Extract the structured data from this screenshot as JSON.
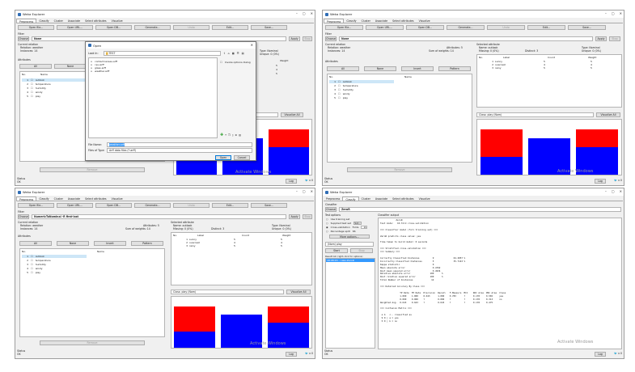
{
  "app_title": "Weka Explorer",
  "tabs": [
    "Preprocess",
    "Classify",
    "Cluster",
    "Associate",
    "Select attributes",
    "Visualize"
  ],
  "toolbar": {
    "open_file": "Open file...",
    "open_url": "Open URL...",
    "open_db": "Open DB...",
    "generate": "Generate...",
    "undo": "Undo",
    "edit": "Edit...",
    "save": "Save..."
  },
  "filter": {
    "label": "Filter",
    "choose": "Choose",
    "value": "None",
    "value_bl": "NumericToNominal -R first-last",
    "apply": "Apply",
    "stop": "Stop"
  },
  "current_relation": {
    "label": "Current relation",
    "relation": "Relation: weather",
    "instances": "Instances: 14",
    "attributes": "Attributes: 5",
    "sum_weights": "Sum of weights: 14"
  },
  "attributes": {
    "label": "Attributes",
    "all": "All",
    "none": "None",
    "invert": "Invert",
    "pattern": "Pattern",
    "col_no": "No.",
    "col_name": "Name",
    "list": [
      {
        "no": "1",
        "name": "outlook"
      },
      {
        "no": "2",
        "name": "temperature"
      },
      {
        "no": "3",
        "name": "humidity"
      },
      {
        "no": "4",
        "name": "windy"
      },
      {
        "no": "5",
        "name": "play"
      }
    ],
    "remove": "Remove"
  },
  "selected_attr": {
    "label": "Selected attribute",
    "name": "Name: outlook",
    "missing": "Missing: 0 (0%)",
    "distinct": "Distinct: 3",
    "type": "Type: Nominal",
    "unique": "Unique: 0 (0%)",
    "cols": [
      "No.",
      "Label",
      "Count",
      "Weight"
    ],
    "rows": [
      [
        "1",
        "sunny",
        "5",
        "5"
      ],
      [
        "2",
        "overcast",
        "4",
        "4"
      ],
      [
        "3",
        "rainy",
        "5",
        "5"
      ]
    ]
  },
  "class_select": "Class: play (Nom)",
  "visualize_all": "Visualize All",
  "status": {
    "label": "Status",
    "value": "OK",
    "log": "Log",
    "count": "x 0"
  },
  "watermark": "Activate Windows",
  "chart_data": {
    "type": "bar",
    "categories": [
      "sunny",
      "overcast",
      "rainy"
    ],
    "series": [
      {
        "name": "yes",
        "values": [
          2,
          4,
          3
        ],
        "color": "#0000ff"
      },
      {
        "name": "no",
        "values": [
          3,
          0,
          2
        ],
        "color": "#ff0000"
      }
    ]
  },
  "open_dialog": {
    "title": "Open",
    "look_in_label": "Look In:",
    "look_in_value": "TEST",
    "files": [
      "contact-lenses.arff",
      "cpu.arff",
      "glass.arff",
      "weather.arff"
    ],
    "invoke_options": "Invoke options dialog",
    "file_name_label": "File Name:",
    "file_name_value": "weather.arff",
    "file_type_label": "Files of Type:",
    "file_type_value": "Arff data files (*.arff)",
    "open_btn": "Open",
    "cancel_btn": "Cancel"
  },
  "classify": {
    "classifier_label": "Classifier",
    "choose": "Choose",
    "classifier_name": "ZeroR",
    "test_options": "Test options",
    "opt_training": "Use training set",
    "opt_supplied": "Supplied test set",
    "opt_supplied_btn": "Set...",
    "opt_cv": "Cross-validation",
    "folds_label": "Folds",
    "folds_value": "10",
    "opt_split": "Percentage split",
    "split_pct": "66",
    "more_options": "More options...",
    "class_sel": "(Nom) play",
    "start": "Start",
    "stop": "Stop",
    "result_list_label": "Result list (right-click for options)",
    "result_item": "18:08:29 - rules.ZeroR",
    "output_label": "Classifier output",
    "output_text": "            ZeroR\nTest mode:   10-fold cross-validation\n\n=== Classifier model (full training set) ===\n\nZeroR predicts class value: yes\n\nTime taken to build model: 0 seconds\n\n=== Stratified cross-validation ===\n=== Summary ===\n\nCorrectly Classified Instances          9               64.2857 %\nIncorrectly Classified Instances        5               35.7143 %\nKappa statistic                         0\nMean absolute error                     0.4762\nRoot mean squared error                 0.4934\nRelative absolute error               100      %\nRoot relative squared error           100      %\nTotal Number of Instances              14\n\n=== Detailed Accuracy By Class ===\n\n               TP Rate  FP Rate  Precision  Recall   F-Measure  MCC    ROC Area  PRC Area  Class\n               1.000    1.000    0.643      1.000    0.783      ?      0.178     0.565     yes\n               0.000    0.000    ?          0.000    ?          ?      0.178     0.313     no\nWeighted Avg.  0.643    0.643    ?          0.643    ?          ?      0.178     0.475\n\n=== Confusion Matrix ===\n\n a b   <-- classified as\n 9 0 | a = yes\n 5 0 | b = no"
  }
}
